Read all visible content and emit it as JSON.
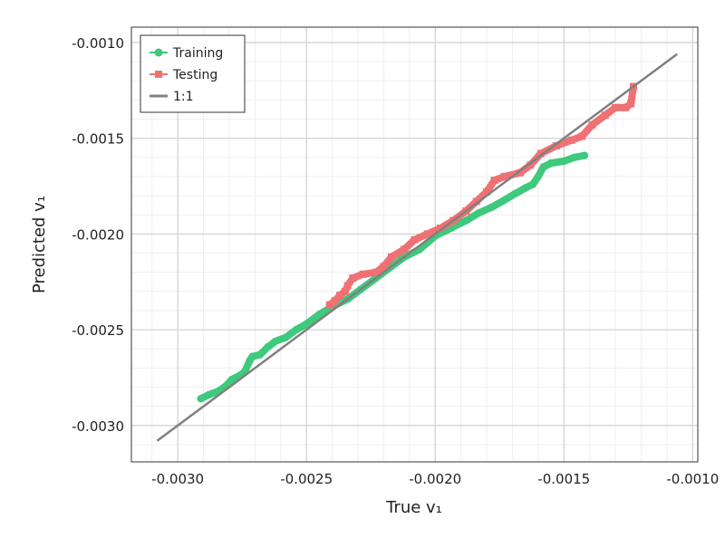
{
  "chart_data": {
    "type": "scatter",
    "xlabel": "True v₁",
    "ylabel": "Predicted v₁",
    "xlim": [
      -0.00318,
      -0.00098
    ],
    "ylim": [
      -0.00319,
      -0.00092
    ],
    "xticks": [
      -0.003,
      -0.0025,
      -0.002,
      -0.0015,
      -0.001
    ],
    "xtick_labels": [
      "-0.0030",
      "-0.0025",
      "-0.0020",
      "-0.0015",
      "-0.0010"
    ],
    "yticks": [
      -0.003,
      -0.0025,
      -0.002,
      -0.0015,
      -0.001
    ],
    "ytick_labels": [
      "-0.0030",
      "-0.0025",
      "-0.0020",
      "-0.0015",
      "-0.0010"
    ],
    "grid": true,
    "minor_grid": true,
    "legend_position": "top-left",
    "series": [
      {
        "name": "Training",
        "color": "#3ec97d",
        "marker": "circle",
        "x": [
          -0.00291,
          -0.00288,
          -0.00284,
          -0.00281,
          -0.00279,
          -0.00276,
          -0.00274,
          -0.00272,
          -0.00271,
          -0.00268,
          -0.00265,
          -0.00262,
          -0.00258,
          -0.00254,
          -0.0025,
          -0.00245,
          -0.0024,
          -0.00234,
          -0.00229,
          -0.00223,
          -0.00217,
          -0.00212,
          -0.00206,
          -0.002,
          -0.00194,
          -0.00188,
          -0.00183,
          -0.00178,
          -0.00174,
          -0.00169,
          -0.00165,
          -0.00162,
          -0.0016,
          -0.00158,
          -0.00155,
          -0.0015,
          -0.00146,
          -0.00142
        ],
        "y": [
          -0.00286,
          -0.00284,
          -0.00282,
          -0.00279,
          -0.00276,
          -0.00274,
          -0.00272,
          -0.00266,
          -0.00264,
          -0.00263,
          -0.00259,
          -0.00256,
          -0.00254,
          -0.0025,
          -0.00247,
          -0.00242,
          -0.00238,
          -0.00234,
          -0.00229,
          -0.00223,
          -0.00217,
          -0.00212,
          -0.00208,
          -0.00201,
          -0.00197,
          -0.00193,
          -0.00189,
          -0.00186,
          -0.00183,
          -0.00179,
          -0.00176,
          -0.00174,
          -0.0017,
          -0.00165,
          -0.00163,
          -0.00162,
          -0.0016,
          -0.00159
        ]
      },
      {
        "name": "Testing",
        "color": "#f07173",
        "marker": "square",
        "x": [
          -0.00241,
          -0.00239,
          -0.00237,
          -0.00235,
          -0.00234,
          -0.00232,
          -0.00228,
          -0.00223,
          -0.0022,
          -0.00217,
          -0.00212,
          -0.00208,
          -0.00203,
          -0.00198,
          -0.00193,
          -0.00188,
          -0.00184,
          -0.0018,
          -0.00177,
          -0.00173,
          -0.00167,
          -0.00163,
          -0.00159,
          -0.00153,
          -0.00147,
          -0.00143,
          -0.00139,
          -0.00134,
          -0.0013,
          -0.00126,
          -0.00124,
          -0.00123
        ],
        "y": [
          -0.00237,
          -0.00235,
          -0.00232,
          -0.0023,
          -0.00227,
          -0.00223,
          -0.00221,
          -0.0022,
          -0.00217,
          -0.00212,
          -0.00208,
          -0.00203,
          -0.002,
          -0.00197,
          -0.00193,
          -0.00188,
          -0.00183,
          -0.00178,
          -0.00172,
          -0.0017,
          -0.00168,
          -0.00164,
          -0.00158,
          -0.00154,
          -0.00151,
          -0.00149,
          -0.00143,
          -0.00138,
          -0.00134,
          -0.00134,
          -0.00132,
          -0.00123
        ]
      },
      {
        "name": "1:1",
        "color": "#808080",
        "marker": "line",
        "x": [
          -0.00308,
          -0.00106
        ],
        "y": [
          -0.00308,
          -0.00106
        ]
      }
    ]
  }
}
